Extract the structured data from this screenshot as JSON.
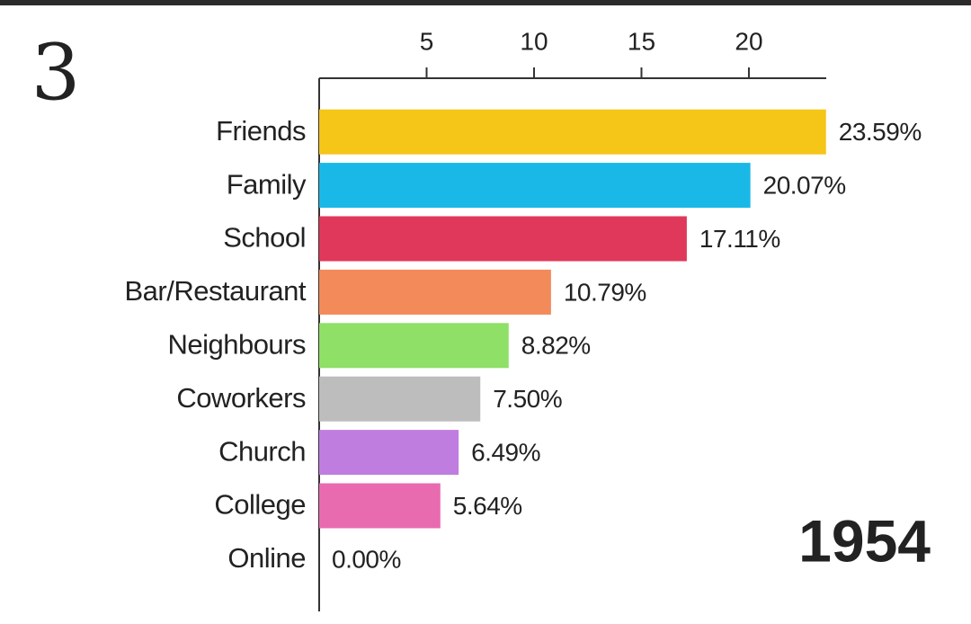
{
  "chart_data": {
    "type": "bar",
    "orientation": "horizontal",
    "annotation": "3",
    "year": "1954",
    "categories": [
      "Friends",
      "Family",
      "School",
      "Bar/Restaurant",
      "Neighbours",
      "Coworkers",
      "Church",
      "College",
      "Online"
    ],
    "values": [
      23.59,
      20.07,
      17.11,
      10.79,
      8.82,
      7.5,
      6.49,
      5.64,
      0
    ],
    "value_labels": [
      "23.59%",
      "20.07%",
      "17.11%",
      "10.79%",
      "8.82%",
      "7.50%",
      "6.49%",
      "5.64%",
      "0.00%"
    ],
    "colors": [
      "#f5c518",
      "#1ab8e6",
      "#e0385a",
      "#f28a5a",
      "#8ee066",
      "#bdbdbd",
      "#c07de0",
      "#e86bb0",
      "#9e9e9e"
    ],
    "xlim": [
      0,
      23.6
    ],
    "xticks": [
      5,
      10,
      15,
      20
    ],
    "grid": false
  }
}
